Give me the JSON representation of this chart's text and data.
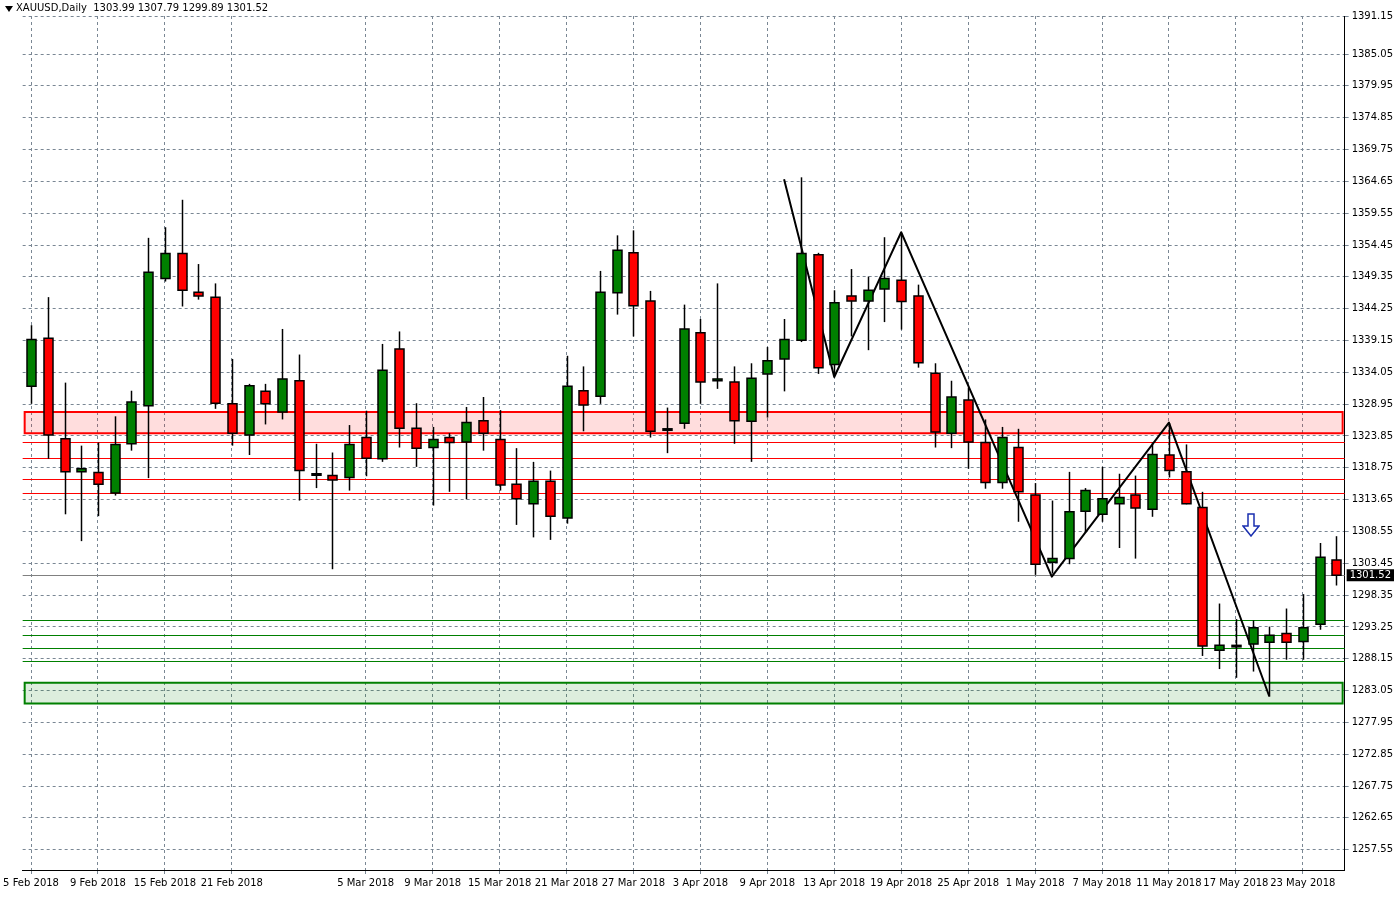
{
  "chart_data": {
    "type": "candlestick",
    "title": "XAUUSD,Daily  1303.99 1307.79 1299.89 1301.52",
    "categories": [
      "5 Feb 2018",
      null,
      null,
      null,
      "9 Feb 2018",
      null,
      null,
      null,
      "15 Feb 2018",
      null,
      null,
      null,
      "21 Feb 2018",
      null,
      null,
      null,
      null,
      null,
      null,
      null,
      "5 Mar 2018",
      null,
      null,
      null,
      "9 Mar 2018",
      null,
      null,
      null,
      "15 Mar 2018",
      null,
      null,
      null,
      "21 Mar 2018",
      null,
      null,
      null,
      "27 Mar 2018",
      null,
      null,
      null,
      "3 Apr 2018",
      null,
      null,
      null,
      "9 Apr 2018",
      null,
      null,
      null,
      "13 Apr 2018",
      null,
      null,
      null,
      "19 Apr 2018",
      null,
      null,
      null,
      "25 Apr 2018",
      null,
      null,
      null,
      "1 May 2018",
      null,
      null,
      null,
      "7 May 2018",
      null,
      null,
      null,
      "11 May 2018",
      null,
      null,
      null,
      "17 May 2018",
      null,
      null,
      null,
      "23 May 2018",
      null,
      null
    ],
    "ohlc": [
      [
        1331.8,
        1341.6,
        1329.0,
        1339.3
      ],
      [
        1339.5,
        1346.1,
        1320.2,
        1324.0
      ],
      [
        1323.4,
        1332.4,
        1311.3,
        1318.1
      ],
      [
        1318.1,
        1322.3,
        1307.0,
        1318.6
      ],
      [
        1318.0,
        1322.8,
        1311.0,
        1316.1
      ],
      [
        1314.7,
        1327.0,
        1314.3,
        1322.5
      ],
      [
        1322.6,
        1331.1,
        1321.5,
        1329.3
      ],
      [
        1328.7,
        1355.6,
        1317.1,
        1350.1
      ],
      [
        1349.1,
        1357.3,
        1348.6,
        1353.1
      ],
      [
        1353.1,
        1361.7,
        1344.6,
        1347.2
      ],
      [
        1346.9,
        1351.4,
        1345.7,
        1346.3
      ],
      [
        1346.1,
        1348.3,
        1328.2,
        1329.1
      ],
      [
        1329.0,
        1336.2,
        1322.3,
        1324.3
      ],
      [
        1324.0,
        1332.2,
        1320.8,
        1331.9
      ],
      [
        1331.0,
        1332.2,
        1325.7,
        1329.0
      ],
      [
        1327.7,
        1341.0,
        1326.5,
        1333.0
      ],
      [
        1332.7,
        1336.9,
        1313.5,
        1318.3
      ],
      [
        1317.8,
        1322.6,
        1315.5,
        1317.8
      ],
      [
        1317.5,
        1321.2,
        1302.5,
        1316.8
      ],
      [
        1317.2,
        1325.6,
        1315.1,
        1322.5
      ],
      [
        1323.6,
        1327.9,
        1317.4,
        1320.3
      ],
      [
        1320.2,
        1338.6,
        1319.7,
        1334.4
      ],
      [
        1337.8,
        1340.6,
        1322.0,
        1325.1
      ],
      [
        1325.1,
        1329.1,
        1318.9,
        1321.9
      ],
      [
        1322.0,
        1325.3,
        1312.7,
        1323.3
      ],
      [
        1323.6,
        1324.3,
        1314.9,
        1322.8
      ],
      [
        1322.9,
        1328.5,
        1313.7,
        1326.0
      ],
      [
        1326.3,
        1330.1,
        1321.5,
        1324.3
      ],
      [
        1323.3,
        1328.0,
        1315.1,
        1316.0
      ],
      [
        1316.1,
        1321.9,
        1309.6,
        1313.8
      ],
      [
        1313.0,
        1319.7,
        1307.6,
        1316.6
      ],
      [
        1316.6,
        1318.3,
        1307.2,
        1311.0
      ],
      [
        1310.7,
        1336.7,
        1309.8,
        1331.8
      ],
      [
        1331.1,
        1335.0,
        1324.6,
        1328.8
      ],
      [
        1330.2,
        1350.3,
        1329.0,
        1346.9
      ],
      [
        1346.8,
        1356.0,
        1343.3,
        1353.6
      ],
      [
        1353.2,
        1356.8,
        1339.8,
        1344.7
      ],
      [
        1345.5,
        1347.1,
        1323.6,
        1324.6
      ],
      [
        1325.0,
        1328.4,
        1321.1,
        1325.0
      ],
      [
        1325.9,
        1344.9,
        1325.0,
        1341.0
      ],
      [
        1340.4,
        1342.6,
        1329.0,
        1332.5
      ],
      [
        1332.7,
        1348.3,
        1331.4,
        1333.0
      ],
      [
        1332.5,
        1335.0,
        1322.6,
        1326.3
      ],
      [
        1326.2,
        1335.5,
        1319.7,
        1333.1
      ],
      [
        1333.8,
        1338.1,
        1326.8,
        1335.9
      ],
      [
        1336.2,
        1342.6,
        1331.0,
        1339.3
      ],
      [
        1339.2,
        1365.3,
        1338.9,
        1353.1
      ],
      [
        1352.9,
        1353.2,
        1333.8,
        1334.8
      ],
      [
        1335.3,
        1347.2,
        1333.5,
        1345.2
      ],
      [
        1346.3,
        1350.6,
        1339.8,
        1345.5
      ],
      [
        1345.5,
        1349.4,
        1337.6,
        1347.2
      ],
      [
        1347.4,
        1355.7,
        1342.1,
        1349.1
      ],
      [
        1348.8,
        1356.3,
        1340.9,
        1345.4
      ],
      [
        1346.3,
        1348.1,
        1334.8,
        1335.6
      ],
      [
        1333.9,
        1335.5,
        1322.0,
        1324.5
      ],
      [
        1324.3,
        1332.7,
        1321.9,
        1330.1
      ],
      [
        1329.6,
        1331.6,
        1318.6,
        1322.9
      ],
      [
        1322.8,
        1326.5,
        1315.4,
        1316.4
      ],
      [
        1316.4,
        1325.3,
        1315.4,
        1323.6
      ],
      [
        1322.0,
        1325.0,
        1310.1,
        1314.9
      ],
      [
        1314.4,
        1316.3,
        1301.6,
        1303.3
      ],
      [
        1303.6,
        1313.5,
        1301.8,
        1304.2
      ],
      [
        1304.2,
        1318.1,
        1303.3,
        1311.7
      ],
      [
        1311.8,
        1315.5,
        1308.4,
        1315.1
      ],
      [
        1311.3,
        1318.9,
        1310.1,
        1313.8
      ],
      [
        1313.0,
        1317.8,
        1305.9,
        1314.0
      ],
      [
        1314.4,
        1317.5,
        1304.2,
        1312.3
      ],
      [
        1312.1,
        1322.8,
        1310.9,
        1320.9
      ],
      [
        1320.8,
        1325.9,
        1317.2,
        1318.3
      ],
      [
        1318.1,
        1322.5,
        1312.9,
        1313.0
      ],
      [
        1312.4,
        1314.9,
        1288.6,
        1290.2
      ],
      [
        1289.5,
        1297.0,
        1286.5,
        1290.3
      ],
      [
        1290.3,
        1294.5,
        1285.1,
        1290.3
      ],
      [
        1290.5,
        1294.3,
        1286.1,
        1293.1
      ],
      [
        1290.8,
        1293.3,
        1282.1,
        1291.9
      ],
      [
        1292.2,
        1296.2,
        1288.0,
        1290.8
      ],
      [
        1290.9,
        1298.5,
        1288.0,
        1293.1
      ],
      [
        1293.7,
        1306.7,
        1292.8,
        1304.4
      ],
      [
        1303.99,
        1307.79,
        1299.89,
        1301.52
      ]
    ],
    "colors": [
      "#008000",
      "#ff0000",
      "#ff0000",
      "#008000",
      "#ff0000",
      "#008000",
      "#008000",
      "#008000",
      "#008000",
      "#ff0000",
      "#ff0000",
      "#ff0000",
      "#ff0000",
      "#008000",
      "#ff0000",
      "#008000",
      "#ff0000",
      "#000000",
      "#ff0000",
      "#008000",
      "#ff0000",
      "#008000",
      "#ff0000",
      "#ff0000",
      "#008000",
      "#ff0000",
      "#008000",
      "#ff0000",
      "#ff0000",
      "#ff0000",
      "#008000",
      "#ff0000",
      "#008000",
      "#ff0000",
      "#008000",
      "#008000",
      "#ff0000",
      "#ff0000",
      "#000000",
      "#008000",
      "#ff0000",
      "#008000",
      "#ff0000",
      "#008000",
      "#008000",
      "#008000",
      "#008000",
      "#ff0000",
      "#008000",
      "#ff0000",
      "#008000",
      "#008000",
      "#ff0000",
      "#ff0000",
      "#ff0000",
      "#008000",
      "#ff0000",
      "#ff0000",
      "#008000",
      "#ff0000",
      "#ff0000",
      "#008000",
      "#008000",
      "#008000",
      "#008000",
      "#008000",
      "#ff0000",
      "#008000",
      "#ff0000",
      "#ff0000",
      "#ff0000",
      "#008000",
      "#000000",
      "#008000",
      "#008000",
      "#ff0000",
      "#008000",
      "#008000",
      "#ff0000"
    ],
    "series": [
      {
        "type": "line",
        "color": "#000000",
        "values": [
          null,
          null,
          null,
          null,
          null,
          null,
          null,
          null,
          null,
          null,
          null,
          null,
          null,
          null,
          null,
          null,
          null,
          null,
          null,
          null,
          null,
          null,
          null,
          null,
          null,
          null,
          null,
          null,
          null,
          null,
          null,
          null,
          null,
          null,
          null,
          null,
          null,
          null,
          null,
          null,
          null,
          null,
          null,
          null,
          null,
          1365.0,
          null,
          null,
          1333.3,
          null,
          null,
          null,
          1356.5,
          null,
          null,
          null,
          null,
          null,
          null,
          null,
          null,
          1301.3,
          null,
          null,
          null,
          null,
          null,
          null,
          1326.0,
          null,
          null,
          null,
          null,
          null,
          1282.1,
          null,
          null,
          null,
          null
        ]
      }
    ],
    "ylim": [
      1254.3,
      1391.15
    ],
    "yticks": [
      1257.55,
      1262.65,
      1267.75,
      1272.85,
      1277.95,
      1283.05,
      1288.15,
      1293.25,
      1298.35,
      1303.45,
      1308.55,
      1313.65,
      1318.75,
      1323.85,
      1328.95,
      1334.05,
      1339.15,
      1344.25,
      1349.35,
      1354.45,
      1359.55,
      1364.65,
      1369.75,
      1374.85,
      1379.95,
      1385.05,
      1391.15
    ],
    "ref_lines": [
      {
        "axis": "y",
        "value": 1301.52,
        "label": "1301.52",
        "color": "#808080"
      },
      {
        "axis": "y",
        "value": 1322.9,
        "color": "#ff0000"
      },
      {
        "axis": "y",
        "value": 1320.3,
        "color": "#ff0000"
      },
      {
        "axis": "y",
        "value": 1316.9,
        "color": "#ff0000"
      },
      {
        "axis": "y",
        "value": 1314.7,
        "color": "#ff0000"
      },
      {
        "axis": "y",
        "value": 1294.3,
        "color": "#008000"
      },
      {
        "axis": "y",
        "value": 1292.0,
        "color": "#008000"
      },
      {
        "axis": "y",
        "value": 1289.9,
        "color": "#008000"
      },
      {
        "axis": "y",
        "value": 1287.8,
        "color": "#008000"
      }
    ],
    "bands": [
      {
        "axis": "y",
        "from": 1324.3,
        "to": 1327.7,
        "color": "#ff0000"
      },
      {
        "axis": "y",
        "from": 1281.0,
        "to": 1284.3,
        "color": "#008000"
      }
    ],
    "grid": true,
    "legend": false,
    "marker": "none",
    "line_style": "solid"
  }
}
